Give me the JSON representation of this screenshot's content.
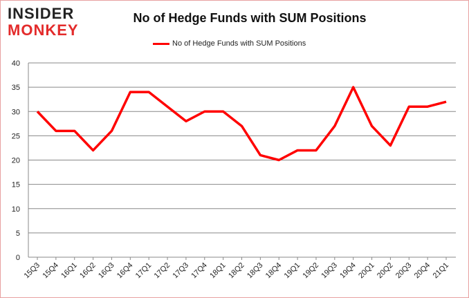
{
  "logo": {
    "line1": "INSIDER",
    "line2": "MONKEY"
  },
  "chart_data": {
    "type": "line",
    "title": "No of Hedge Funds with SUM Positions",
    "xlabel": "",
    "ylabel": "",
    "categories": [
      "15Q3",
      "15Q4",
      "16Q1",
      "16Q2",
      "16Q3",
      "16Q4",
      "17Q1",
      "17Q2",
      "17Q3",
      "17Q4",
      "18Q1",
      "18Q2",
      "18Q3",
      "18Q4",
      "19Q1",
      "19Q2",
      "19Q3",
      "19Q4",
      "20Q1",
      "20Q2",
      "20Q3",
      "20Q4",
      "21Q1"
    ],
    "series": [
      {
        "name": "No of Hedge Funds with SUM Positions",
        "color": "#ff0000",
        "values": [
          30,
          26,
          26,
          22,
          26,
          34,
          34,
          31,
          28,
          30,
          30,
          27,
          21,
          20,
          22,
          22,
          27,
          35,
          27,
          23,
          31,
          31,
          32
        ]
      }
    ],
    "ylim": [
      0,
      40
    ],
    "yticks": [
      0,
      5,
      10,
      15,
      20,
      25,
      30,
      35,
      40
    ],
    "grid": true,
    "legend": "top-center"
  }
}
